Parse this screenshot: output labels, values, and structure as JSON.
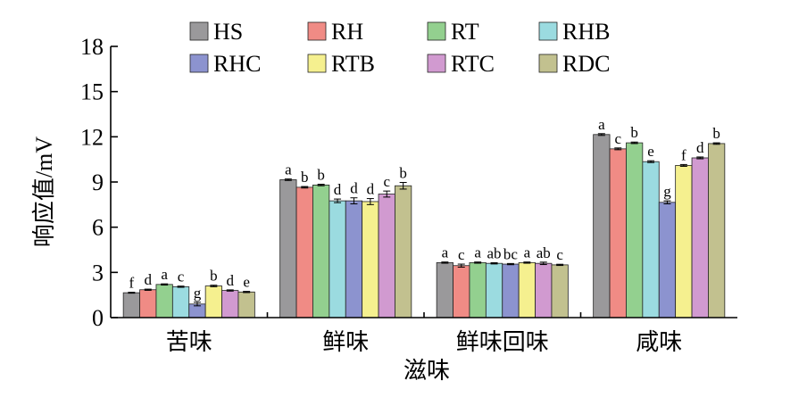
{
  "chart_data": {
    "type": "bar",
    "xlabel": "滋味",
    "ylabel": "响应值/mV",
    "ylim": [
      0,
      18
    ],
    "yticks": [
      0,
      3,
      6,
      9,
      12,
      15,
      18
    ],
    "categories": [
      "苦味",
      "鲜味",
      "鲜味回味",
      "咸味"
    ],
    "legend_position": "top",
    "series": [
      {
        "name": "HS",
        "color": "#9a999b",
        "values": [
          1.65,
          9.15,
          3.65,
          12.15
        ],
        "sig": [
          "f",
          "a",
          "a",
          "a"
        ]
      },
      {
        "name": "RH",
        "color": "#f08b85",
        "values": [
          1.85,
          8.65,
          3.45,
          11.2
        ],
        "sig": [
          "d",
          "b",
          "c",
          "c"
        ]
      },
      {
        "name": "RT",
        "color": "#93d08f",
        "values": [
          2.2,
          8.8,
          3.65,
          11.6
        ],
        "sig": [
          "a",
          "b",
          "a",
          "b"
        ]
      },
      {
        "name": "RHB",
        "color": "#9bdbe0",
        "values": [
          2.05,
          7.75,
          3.6,
          10.35
        ],
        "sig": [
          "c",
          "d",
          "ab",
          "e"
        ]
      },
      {
        "name": "RHC",
        "color": "#8c93cf",
        "values": [
          0.9,
          7.75,
          3.55,
          7.65
        ],
        "sig": [
          "g",
          "d",
          "bc",
          "g"
        ]
      },
      {
        "name": "RTB",
        "color": "#f5f08f",
        "values": [
          2.1,
          7.7,
          3.65,
          10.1
        ],
        "sig": [
          "b",
          "d",
          "a",
          "f"
        ]
      },
      {
        "name": "RTC",
        "color": "#d19ad0",
        "values": [
          1.8,
          8.2,
          3.6,
          10.6
        ],
        "sig": [
          "d",
          "c",
          "ab",
          "d"
        ]
      },
      {
        "name": "RDC",
        "color": "#c2c18f",
        "values": [
          1.7,
          8.75,
          3.5,
          11.55
        ],
        "sig": [
          "e",
          "b",
          "c",
          "b"
        ]
      }
    ],
    "errors": [
      [
        0.03,
        0.05,
        0.04,
        0.06
      ],
      [
        0.04,
        0.05,
        0.1,
        0.06
      ],
      [
        0.04,
        0.05,
        0.04,
        0.05
      ],
      [
        0.04,
        0.12,
        0.04,
        0.06
      ],
      [
        0.12,
        0.2,
        0.04,
        0.1
      ],
      [
        0.05,
        0.2,
        0.04,
        0.06
      ],
      [
        0.04,
        0.2,
        0.08,
        0.06
      ],
      [
        0.04,
        0.22,
        0.04,
        0.05
      ]
    ]
  }
}
